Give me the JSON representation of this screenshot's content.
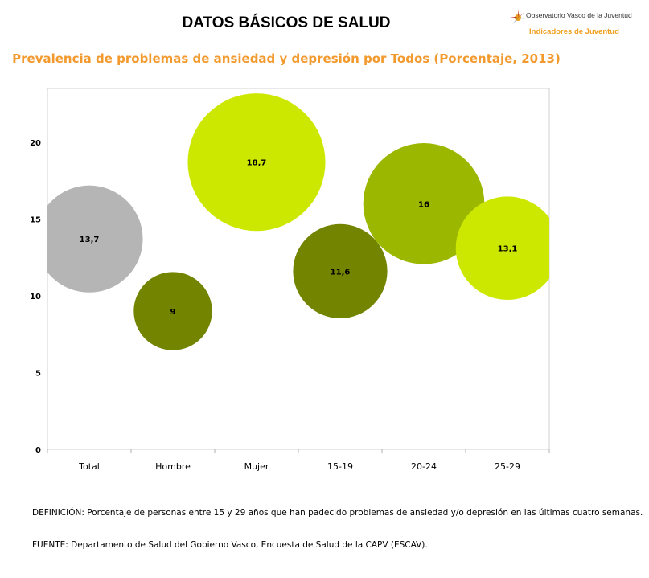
{
  "header": {
    "title": "DATOS BÁSICOS DE SALUD",
    "logo_text": "Observatorio Vasco de la Juventud",
    "logo_subtitle": "Indicadores de Juventud"
  },
  "chart_title": "Prevalencia de problemas de ansiedad y depresión por Todos (Porcentaje, 2013)",
  "chart_data": {
    "type": "scatter",
    "title": "Prevalencia de problemas de ansiedad y depresión por Todos (Porcentaje, 2013)",
    "categories": [
      "Total",
      "Hombre",
      "Mujer",
      "15-19",
      "20-24",
      "25-29"
    ],
    "values": [
      13.7,
      9,
      18.7,
      11.6,
      16,
      13.1
    ],
    "data_labels": [
      "13,7",
      "9",
      "18,7",
      "11,6",
      "16",
      "13,1"
    ],
    "colors": [
      "#b5b5b5",
      "#738500",
      "#cde800",
      "#738500",
      "#9cb700",
      "#cde800"
    ],
    "yticks": [
      0,
      5,
      10,
      15,
      20
    ],
    "ylim": [
      0,
      23.5
    ],
    "grid": false,
    "xlabel": "",
    "ylabel": ""
  },
  "footer": {
    "definition": "DEFINICIÓN: Porcentaje de personas entre 15 y 29 años que han padecido problemas de ansiedad y/o depresión en las últimas cuatro semanas.",
    "source": "FUENTE: Departamento de Salud del Gobierno Vasco, Encuesta de Salud de la CAPV (ESCAV)."
  }
}
